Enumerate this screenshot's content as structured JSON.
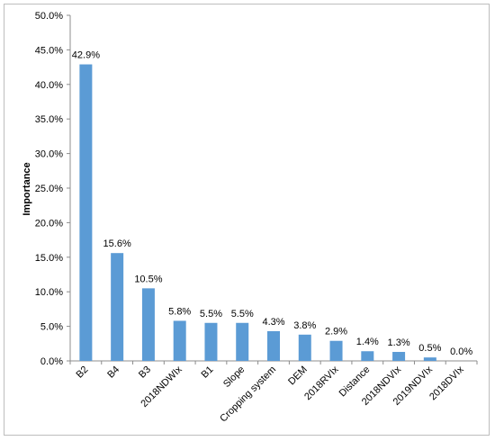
{
  "chart_data": {
    "type": "bar",
    "ylabel": "Importance",
    "xlabel": "",
    "title": "",
    "ylim": [
      0,
      50
    ],
    "ytick_step": 5,
    "y_format": "percent_1dp",
    "grid": false,
    "legend": "none",
    "bar_color": "#5B9BD5",
    "categories": [
      "B2",
      "B4",
      "B3",
      "2018NDWIx",
      "B1",
      "Slope",
      "Cropping system",
      "DEM",
      "2018RVIx",
      "Distance",
      "2018NDVIx",
      "2019NDVIx",
      "2018DVIx"
    ],
    "values": [
      42.9,
      15.6,
      10.5,
      5.8,
      5.5,
      5.5,
      4.3,
      3.8,
      2.9,
      1.4,
      1.3,
      0.5,
      0.0
    ],
    "data_labels": [
      "42.9%",
      "15.6%",
      "10.5%",
      "5.8%",
      "5.5%",
      "5.5%",
      "4.3%",
      "3.8%",
      "2.9%",
      "1.4%",
      "1.3%",
      "0.5%",
      "0.0%"
    ]
  }
}
